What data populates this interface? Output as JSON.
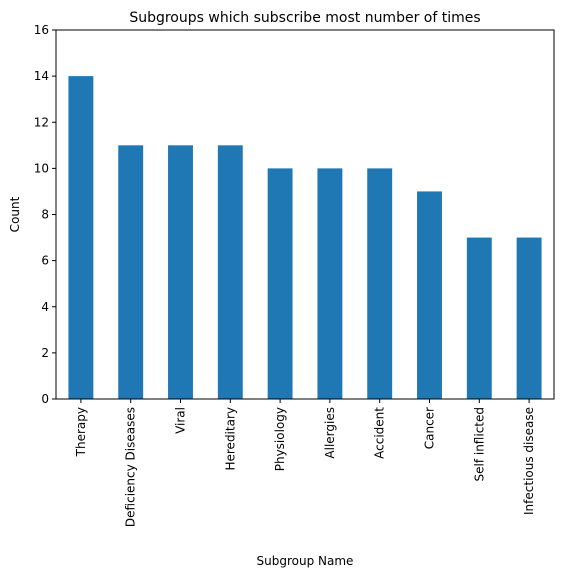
{
  "chart_data": {
    "type": "bar",
    "title": "Subgroups which subscribe most number of times",
    "xlabel": "Subgroup Name",
    "ylabel": "Count",
    "categories": [
      "Therapy",
      "Deficiency Diseases",
      "Viral",
      "Hereditary",
      "Physiology",
      "Allergies",
      "Accident",
      "Cancer",
      "Self inflicted",
      "Infectious disease"
    ],
    "values": [
      14,
      11,
      11,
      11,
      10,
      10,
      10,
      9,
      7,
      7
    ],
    "ylim": [
      0,
      16
    ],
    "yticks": [
      0,
      2,
      4,
      6,
      8,
      10,
      12,
      14,
      16
    ],
    "bar_color": "#1f77b4",
    "grid": false,
    "legend": "none"
  }
}
